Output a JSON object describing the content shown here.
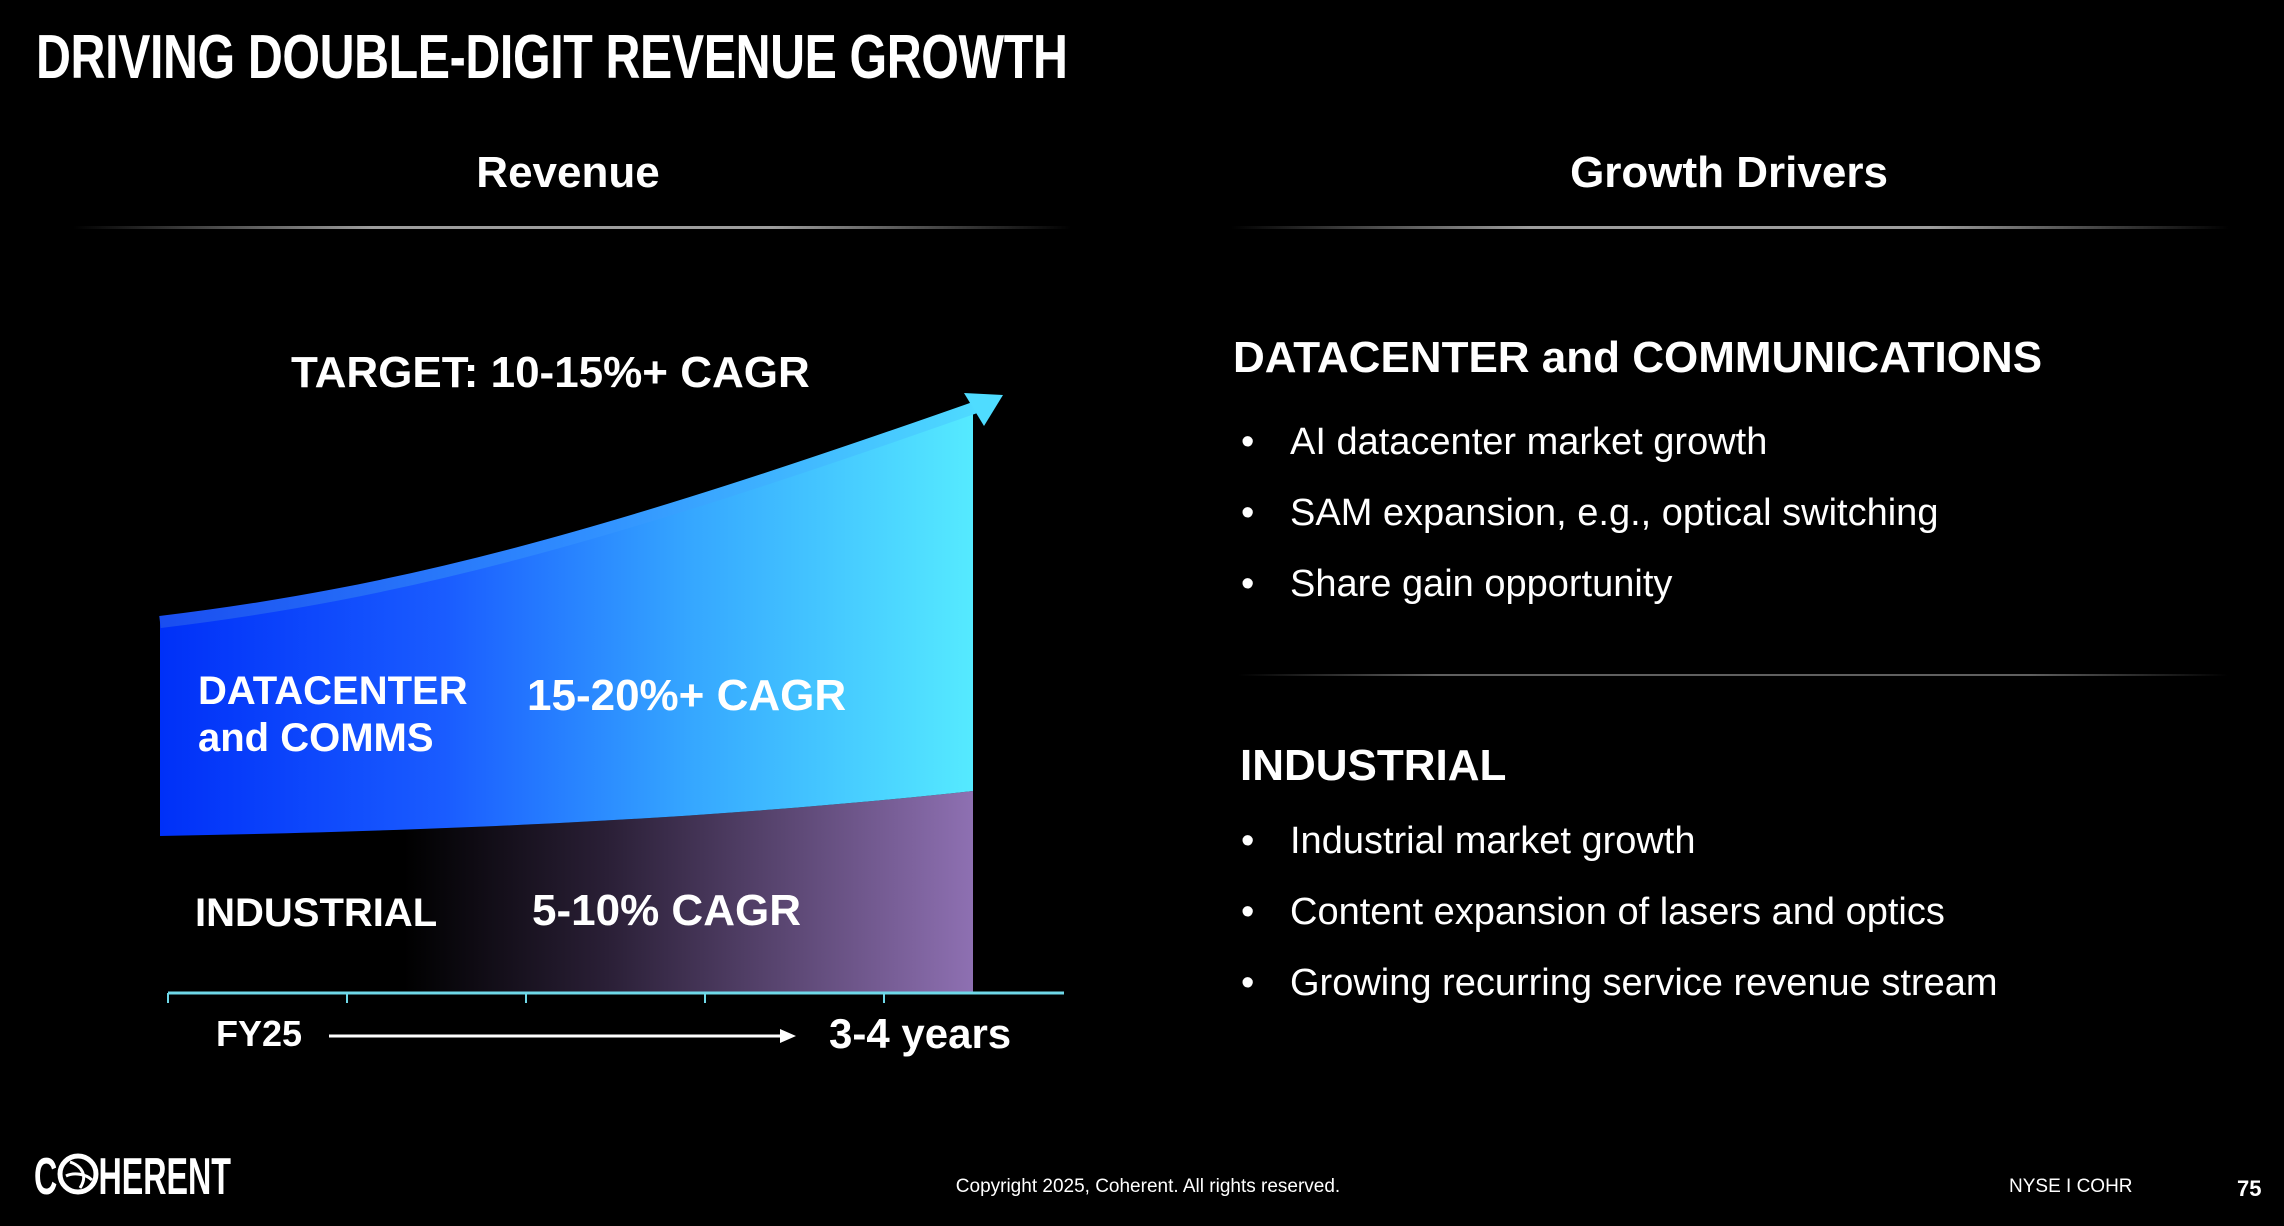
{
  "title": "DRIVING DOUBLE-DIGIT REVENUE GROWTH",
  "left_column": {
    "heading": "Revenue",
    "target": "TARGET: 10-15%+ CAGR",
    "segments": [
      {
        "label_line1": "DATACENTER",
        "label_line2": "and COMMS",
        "cagr": "15-20%+ CAGR",
        "color_start": "#0033ff",
        "color_end": "#55e8ff"
      },
      {
        "label_line1": "INDUSTRIAL",
        "cagr": "5-10% CAGR",
        "color_start": "#000000",
        "color_end": "#8e70b2"
      }
    ],
    "axis": {
      "start": "FY25",
      "end": "3-4 years"
    }
  },
  "right_column": {
    "heading": "Growth Drivers",
    "sections": [
      {
        "title": "DATACENTER and COMMUNICATIONS",
        "bullets": [
          "AI datacenter market growth",
          "SAM expansion, e.g., optical switching",
          "Share gain opportunity"
        ]
      },
      {
        "title": "INDUSTRIAL",
        "bullets": [
          "Industrial market growth",
          "Content expansion of lasers and optics",
          "Growing recurring service revenue stream"
        ]
      }
    ]
  },
  "footer": {
    "logo": "COHERENT",
    "copyright": "Copyright 2025, Coherent. All rights reserved.",
    "ticker": "NYSE I COHR",
    "page": "75"
  }
}
